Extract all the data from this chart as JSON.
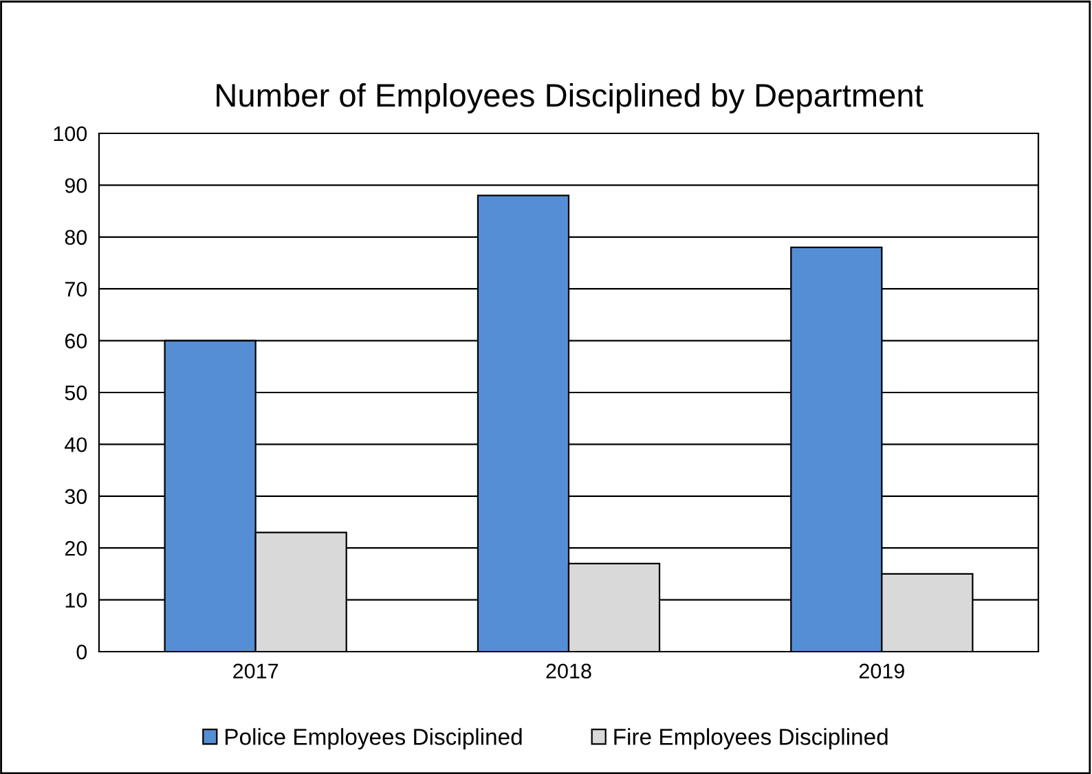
{
  "chart_data": {
    "type": "bar",
    "title": "Number of Employees Disciplined by Department",
    "categories": [
      "2017",
      "2018",
      "2019"
    ],
    "series": [
      {
        "name": "Police Employees Disciplined",
        "color": "#558ed5",
        "values": [
          60,
          88,
          78
        ]
      },
      {
        "name": "Fire Employees Disciplined",
        "color": "#d9d9d9",
        "values": [
          23,
          17,
          15
        ]
      }
    ],
    "ylim": [
      0,
      100
    ],
    "yticks": [
      0,
      10,
      20,
      30,
      40,
      50,
      60,
      70,
      80,
      90,
      100
    ],
    "grid": "y",
    "legend": "bottom"
  }
}
